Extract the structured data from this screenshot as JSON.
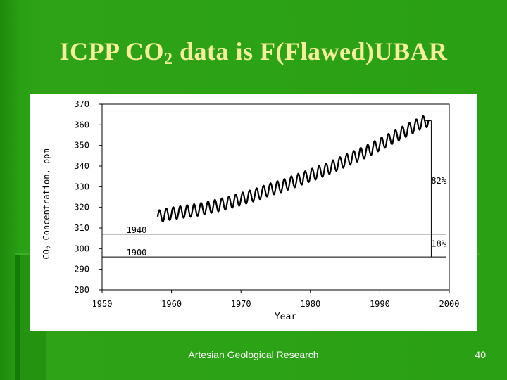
{
  "slide": {
    "title_pre": "ICPP CO",
    "title_sub": "2",
    "title_post": " data is F(Flawed)UBAR",
    "footer": "Artesian Geological Research",
    "page_number": "40"
  },
  "chart_data": {
    "type": "line",
    "xlabel": "Year",
    "ylabel_pre": "CO",
    "ylabel_sub": "2",
    "ylabel_post": " Concentration, ppm",
    "xlim": [
      1950,
      2000
    ],
    "ylim": [
      280,
      370
    ],
    "x_ticks": [
      "1950",
      "1960",
      "1970",
      "1980",
      "1990",
      "2000"
    ],
    "y_ticks": [
      "280",
      "290",
      "300",
      "310",
      "320",
      "330",
      "340",
      "350",
      "360",
      "370"
    ],
    "series": [
      {
        "x": [
          1958,
          1960,
          1962,
          1964,
          1966,
          1968,
          1970,
          1972,
          1974,
          1976,
          1978,
          1980,
          1982,
          1984,
          1986,
          1988,
          1990,
          1992,
          1994,
          1996,
          1997
        ],
        "y": [
          315.5,
          317,
          318,
          319,
          320.5,
          322,
          324,
          326,
          328.5,
          330.5,
          333,
          335.5,
          338,
          341,
          344,
          347,
          350.5,
          354,
          357.5,
          361,
          362
        ],
        "seasonal_amplitude": 3,
        "color": "#000000"
      }
    ],
    "reference_lines": [
      {
        "label": "1900",
        "y": 296
      },
      {
        "label": "1940",
        "y": 307
      }
    ],
    "annotations": [
      {
        "text": "82%",
        "x": 1998.5,
        "y": 331.5
      },
      {
        "text": "18%",
        "x": 1998.5,
        "y": 301
      }
    ],
    "bracket": {
      "x": 1997,
      "y_top": 362,
      "y_mid": 307,
      "y_bottom": 296
    }
  }
}
